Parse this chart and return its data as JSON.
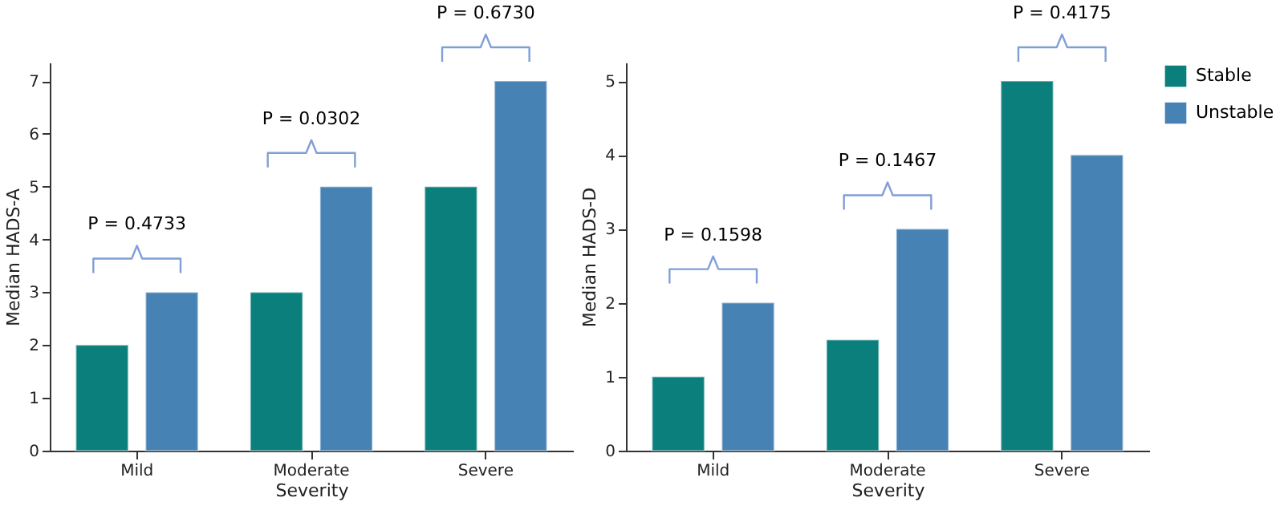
{
  "chart_data": [
    {
      "type": "bar",
      "xlabel": "Severity",
      "ylabel": "Median HADS-A",
      "categories": [
        "Mild",
        "Moderate",
        "Severe"
      ],
      "series": [
        {
          "color": "#0b7f7c",
          "values": [
            2,
            3,
            5
          ]
        },
        {
          "color": "#4682b4",
          "values": [
            3,
            5,
            7
          ]
        }
      ],
      "ylim": [
        0,
        7.35
      ],
      "yticks": [
        0,
        1,
        2,
        3,
        4,
        5,
        6,
        7
      ],
      "grid": false,
      "annotations": [
        "P = 0.4733",
        "P = 0.0302",
        "P = 0.6730"
      ]
    },
    {
      "type": "bar",
      "xlabel": "Severity",
      "ylabel": "Median HADS-D",
      "categories": [
        "Mild",
        "Moderate",
        "Severe"
      ],
      "series": [
        {
          "name": "Stable",
          "color": "#0b7f7c",
          "values": [
            1,
            1.5,
            5
          ]
        },
        {
          "name": "Unstable",
          "color": "#4682b4",
          "values": [
            2,
            3,
            4
          ]
        }
      ],
      "ylim": [
        0,
        5.25
      ],
      "yticks": [
        0,
        1,
        2,
        3,
        4,
        5
      ],
      "grid": false,
      "legend": "right",
      "annotations": [
        "P = 0.1598",
        "P = 0.1467",
        "P = 0.4175"
      ]
    }
  ]
}
